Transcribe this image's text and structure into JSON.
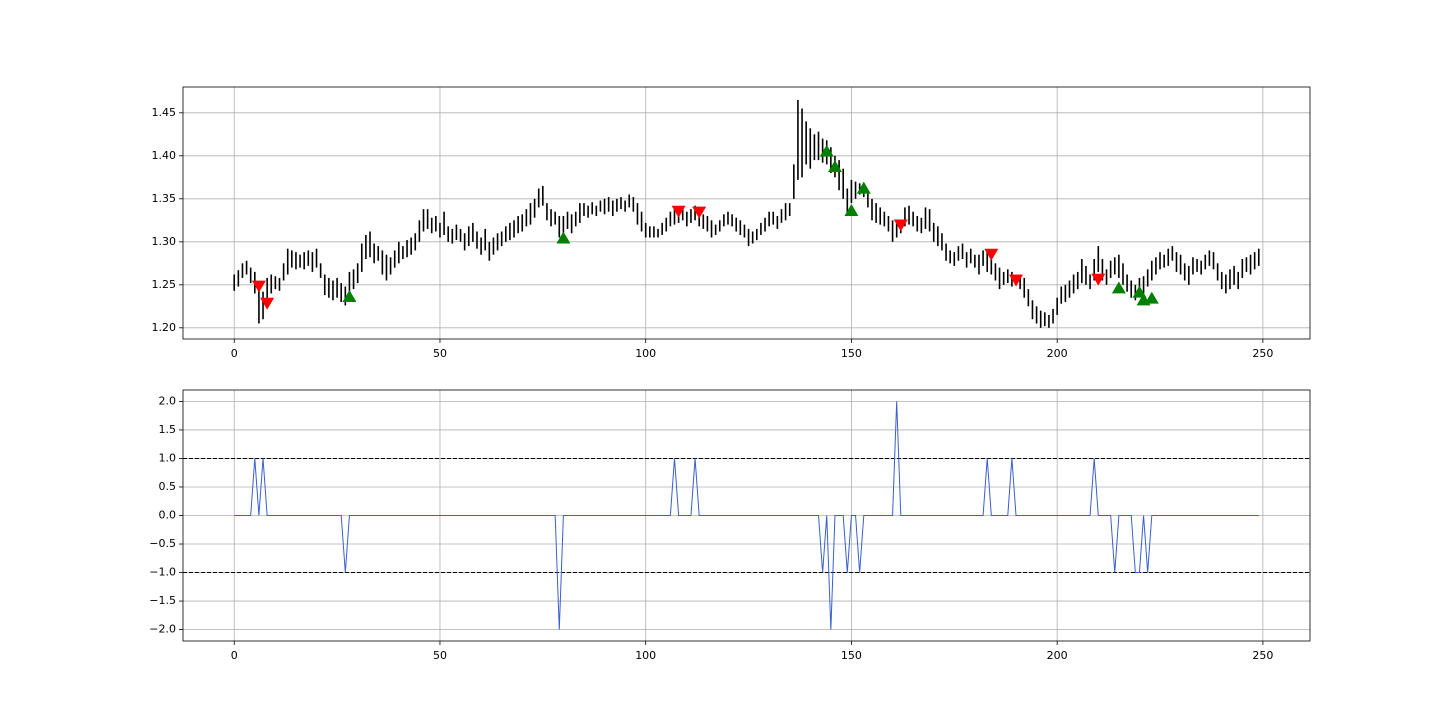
{
  "chart_data": [
    {
      "type": "hilo",
      "color": "#000000",
      "grid": true,
      "xlim": [
        -12.45,
        261.45
      ],
      "xticks": [
        0,
        50,
        100,
        150,
        200,
        250
      ],
      "ylim": [
        1.187,
        1.48
      ],
      "yticks": [
        {
          "value": 1.2,
          "label": "1.20"
        },
        {
          "value": 1.25,
          "label": "1.25"
        },
        {
          "value": 1.3,
          "label": "1.30"
        },
        {
          "value": 1.35,
          "label": "1.35"
        },
        {
          "value": 1.4,
          "label": "1.40"
        },
        {
          "value": 1.45,
          "label": "1.45"
        }
      ],
      "x": [
        0,
        1,
        2,
        3,
        4,
        5,
        6,
        7,
        8,
        9,
        10,
        11,
        12,
        13,
        14,
        15,
        16,
        17,
        18,
        19,
        20,
        21,
        22,
        23,
        24,
        25,
        26,
        27,
        28,
        29,
        30,
        31,
        32,
        33,
        34,
        35,
        36,
        37,
        38,
        39,
        40,
        41,
        42,
        43,
        44,
        45,
        46,
        47,
        48,
        49,
        50,
        51,
        52,
        53,
        54,
        55,
        56,
        57,
        58,
        59,
        60,
        61,
        62,
        63,
        64,
        65,
        66,
        67,
        68,
        69,
        70,
        71,
        72,
        73,
        74,
        75,
        76,
        77,
        78,
        79,
        80,
        81,
        82,
        83,
        84,
        85,
        86,
        87,
        88,
        89,
        90,
        91,
        92,
        93,
        94,
        95,
        96,
        97,
        98,
        99,
        100,
        101,
        102,
        103,
        104,
        105,
        106,
        107,
        108,
        109,
        110,
        111,
        112,
        113,
        114,
        115,
        116,
        117,
        118,
        119,
        120,
        121,
        122,
        123,
        124,
        125,
        126,
        127,
        128,
        129,
        130,
        131,
        132,
        133,
        134,
        135,
        136,
        137,
        138,
        139,
        140,
        141,
        142,
        143,
        144,
        145,
        146,
        147,
        148,
        149,
        150,
        151,
        152,
        153,
        154,
        155,
        156,
        157,
        158,
        159,
        160,
        161,
        162,
        163,
        164,
        165,
        166,
        167,
        168,
        169,
        170,
        171,
        172,
        173,
        174,
        175,
        176,
        177,
        178,
        179,
        180,
        181,
        182,
        183,
        184,
        185,
        186,
        187,
        188,
        189,
        190,
        191,
        192,
        193,
        194,
        195,
        196,
        197,
        198,
        199,
        200,
        201,
        202,
        203,
        204,
        205,
        206,
        207,
        208,
        209,
        210,
        211,
        212,
        213,
        214,
        215,
        216,
        217,
        218,
        219,
        220,
        221,
        222,
        223,
        224,
        225,
        226,
        227,
        228,
        229,
        230,
        231,
        232,
        233,
        234,
        235,
        236,
        237,
        238,
        239,
        240,
        241,
        242,
        243,
        244,
        245,
        246,
        247,
        248,
        249
      ],
      "low": [
        1.243,
        1.248,
        1.258,
        1.262,
        1.252,
        1.24,
        1.205,
        1.21,
        1.232,
        1.24,
        1.245,
        1.243,
        1.255,
        1.262,
        1.27,
        1.268,
        1.27,
        1.268,
        1.272,
        1.265,
        1.27,
        1.258,
        1.238,
        1.235,
        1.232,
        1.235,
        1.23,
        1.226,
        1.24,
        1.245,
        1.252,
        1.265,
        1.28,
        1.282,
        1.275,
        1.278,
        1.262,
        1.255,
        1.262,
        1.27,
        1.275,
        1.28,
        1.282,
        1.285,
        1.29,
        1.3,
        1.312,
        1.315,
        1.31,
        1.312,
        1.305,
        1.308,
        1.3,
        1.298,
        1.302,
        1.3,
        1.29,
        1.295,
        1.3,
        1.292,
        1.285,
        1.29,
        1.278,
        1.285,
        1.29,
        1.295,
        1.3,
        1.302,
        1.305,
        1.31,
        1.312,
        1.318,
        1.32,
        1.328,
        1.34,
        1.342,
        1.325,
        1.318,
        1.32,
        1.305,
        1.31,
        1.315,
        1.31,
        1.318,
        1.322,
        1.33,
        1.328,
        1.332,
        1.33,
        1.335,
        1.332,
        1.335,
        1.33,
        1.335,
        1.338,
        1.335,
        1.34,
        1.335,
        1.32,
        1.312,
        1.305,
        1.305,
        1.305,
        1.305,
        1.308,
        1.312,
        1.318,
        1.32,
        1.322,
        1.325,
        1.318,
        1.322,
        1.325,
        1.318,
        1.315,
        1.312,
        1.305,
        1.308,
        1.312,
        1.318,
        1.32,
        1.318,
        1.312,
        1.308,
        1.305,
        1.295,
        1.298,
        1.302,
        1.308,
        1.312,
        1.318,
        1.32,
        1.315,
        1.322,
        1.325,
        1.33,
        1.35,
        1.372,
        1.375,
        1.39,
        1.385,
        1.395,
        1.395,
        1.392,
        1.39,
        1.38,
        1.375,
        1.36,
        1.35,
        1.33,
        1.345,
        1.35,
        1.355,
        1.352,
        1.34,
        1.325,
        1.322,
        1.32,
        1.318,
        1.312,
        1.3,
        1.305,
        1.31,
        1.318,
        1.32,
        1.318,
        1.312,
        1.31,
        1.315,
        1.312,
        1.3,
        1.295,
        1.29,
        1.278,
        1.275,
        1.272,
        1.278,
        1.28,
        1.27,
        1.275,
        1.27,
        1.262,
        1.272,
        1.265,
        1.262,
        1.255,
        1.245,
        1.25,
        1.252,
        1.248,
        1.25,
        1.245,
        1.235,
        1.225,
        1.21,
        1.205,
        1.2,
        1.202,
        1.2,
        1.205,
        1.215,
        1.228,
        1.23,
        1.235,
        1.24,
        1.245,
        1.252,
        1.25,
        1.245,
        1.255,
        1.265,
        1.255,
        1.25,
        1.258,
        1.262,
        1.258,
        1.25,
        1.242,
        1.235,
        1.232,
        1.238,
        1.24,
        1.248,
        1.255,
        1.262,
        1.268,
        1.27,
        1.272,
        1.278,
        1.265,
        1.262,
        1.255,
        1.25,
        1.262,
        1.265,
        1.262,
        1.268,
        1.272,
        1.268,
        1.255,
        1.245,
        1.24,
        1.245,
        1.25,
        1.245,
        1.258,
        1.265,
        1.262,
        1.268,
        1.272
      ],
      "high": [
        1.262,
        1.267,
        1.275,
        1.278,
        1.27,
        1.265,
        1.25,
        1.242,
        1.258,
        1.262,
        1.26,
        1.258,
        1.275,
        1.292,
        1.29,
        1.288,
        1.285,
        1.288,
        1.29,
        1.288,
        1.292,
        1.275,
        1.262,
        1.258,
        1.255,
        1.258,
        1.252,
        1.248,
        1.265,
        1.268,
        1.275,
        1.298,
        1.308,
        1.312,
        1.298,
        1.295,
        1.29,
        1.285,
        1.282,
        1.29,
        1.3,
        1.295,
        1.302,
        1.305,
        1.31,
        1.325,
        1.338,
        1.338,
        1.328,
        1.33,
        1.322,
        1.335,
        1.318,
        1.315,
        1.32,
        1.315,
        1.31,
        1.318,
        1.322,
        1.312,
        1.305,
        1.315,
        1.3,
        1.305,
        1.31,
        1.312,
        1.318,
        1.322,
        1.325,
        1.33,
        1.332,
        1.338,
        1.345,
        1.35,
        1.362,
        1.365,
        1.345,
        1.338,
        1.335,
        1.33,
        1.33,
        1.335,
        1.332,
        1.335,
        1.345,
        1.345,
        1.342,
        1.346,
        1.342,
        1.348,
        1.35,
        1.352,
        1.348,
        1.35,
        1.352,
        1.348,
        1.355,
        1.352,
        1.345,
        1.335,
        1.322,
        1.318,
        1.318,
        1.315,
        1.322,
        1.328,
        1.335,
        1.34,
        1.338,
        1.34,
        1.335,
        1.338,
        1.342,
        1.335,
        1.332,
        1.33,
        1.325,
        1.32,
        1.325,
        1.332,
        1.335,
        1.332,
        1.328,
        1.325,
        1.32,
        1.315,
        1.312,
        1.315,
        1.322,
        1.328,
        1.335,
        1.335,
        1.33,
        1.338,
        1.345,
        1.345,
        1.39,
        1.465,
        1.455,
        1.44,
        1.432,
        1.425,
        1.428,
        1.42,
        1.418,
        1.41,
        1.4,
        1.395,
        1.385,
        1.362,
        1.372,
        1.37,
        1.368,
        1.365,
        1.36,
        1.35,
        1.345,
        1.34,
        1.335,
        1.33,
        1.325,
        1.322,
        1.325,
        1.34,
        1.342,
        1.335,
        1.33,
        1.328,
        1.34,
        1.338,
        1.322,
        1.318,
        1.31,
        1.298,
        1.29,
        1.288,
        1.295,
        1.298,
        1.288,
        1.292,
        1.285,
        1.285,
        1.29,
        1.288,
        1.28,
        1.275,
        1.27,
        1.265,
        1.268,
        1.265,
        1.262,
        1.262,
        1.258,
        1.245,
        1.232,
        1.225,
        1.22,
        1.218,
        1.215,
        1.222,
        1.235,
        1.248,
        1.25,
        1.255,
        1.262,
        1.265,
        1.28,
        1.272,
        1.262,
        1.28,
        1.295,
        1.28,
        1.268,
        1.278,
        1.282,
        1.285,
        1.275,
        1.262,
        1.255,
        1.25,
        1.258,
        1.26,
        1.268,
        1.278,
        1.282,
        1.288,
        1.285,
        1.292,
        1.295,
        1.288,
        1.285,
        1.275,
        1.272,
        1.282,
        1.28,
        1.278,
        1.285,
        1.29,
        1.288,
        1.275,
        1.265,
        1.262,
        1.268,
        1.272,
        1.265,
        1.28,
        1.282,
        1.285,
        1.288,
        1.292
      ],
      "markers": [
        {
          "color": "#ff0000",
          "shape": "down",
          "x": [
            6,
            8,
            108,
            113,
            162,
            184,
            190,
            210
          ],
          "y": [
            1.248,
            1.228,
            1.335,
            1.334,
            1.319,
            1.285,
            1.255,
            1.256
          ]
        },
        {
          "color": "#008000",
          "shape": "up",
          "x": [
            28,
            80,
            144,
            146,
            150,
            153,
            215,
            220,
            221,
            223
          ],
          "y": [
            1.237,
            1.305,
            1.406,
            1.388,
            1.337,
            1.363,
            1.247,
            1.242,
            1.233,
            1.235
          ]
        }
      ]
    },
    {
      "type": "line",
      "color": "#3a5fd0",
      "grid": true,
      "xlim": [
        -12.45,
        261.45
      ],
      "xticks": [
        0,
        50,
        100,
        150,
        200,
        250
      ],
      "ylim": [
        -2.2,
        2.2
      ],
      "yticks": [
        {
          "value": -2,
          "label": "−2.0"
        },
        {
          "value": -1.5,
          "label": "−1.5"
        },
        {
          "value": -1,
          "label": "−1.0"
        },
        {
          "value": -0.5,
          "label": "−0.5"
        },
        {
          "value": 0,
          "label": "0.0"
        },
        {
          "value": 0.5,
          "label": "0.5"
        },
        {
          "value": 1,
          "label": "1.0"
        },
        {
          "value": 1.5,
          "label": "1.5"
        },
        {
          "value": 2,
          "label": "2.0"
        }
      ],
      "hlines": [
        1,
        -1
      ],
      "x": [
        0,
        4,
        5,
        6,
        7,
        8,
        26,
        27,
        28,
        78,
        79,
        80,
        106,
        107,
        108,
        111,
        112,
        113,
        142,
        143,
        144,
        145,
        146,
        148,
        149,
        150,
        151,
        152,
        153,
        160,
        161,
        162,
        182,
        183,
        184,
        188,
        189,
        190,
        208,
        209,
        210,
        213,
        214,
        215,
        218,
        219,
        220,
        221,
        222,
        223,
        249
      ],
      "values": [
        0,
        0,
        1,
        0,
        1,
        0,
        0,
        -1,
        0,
        0,
        -2,
        0,
        0,
        1,
        0,
        0,
        1,
        0,
        0,
        -1,
        0,
        -2,
        0,
        0,
        -1,
        0,
        0,
        -1,
        0,
        0,
        2,
        0,
        0,
        1,
        0,
        0,
        1,
        0,
        0,
        1,
        0,
        0,
        -1,
        0,
        0,
        -1,
        -1,
        0,
        -1,
        0,
        0
      ]
    }
  ]
}
